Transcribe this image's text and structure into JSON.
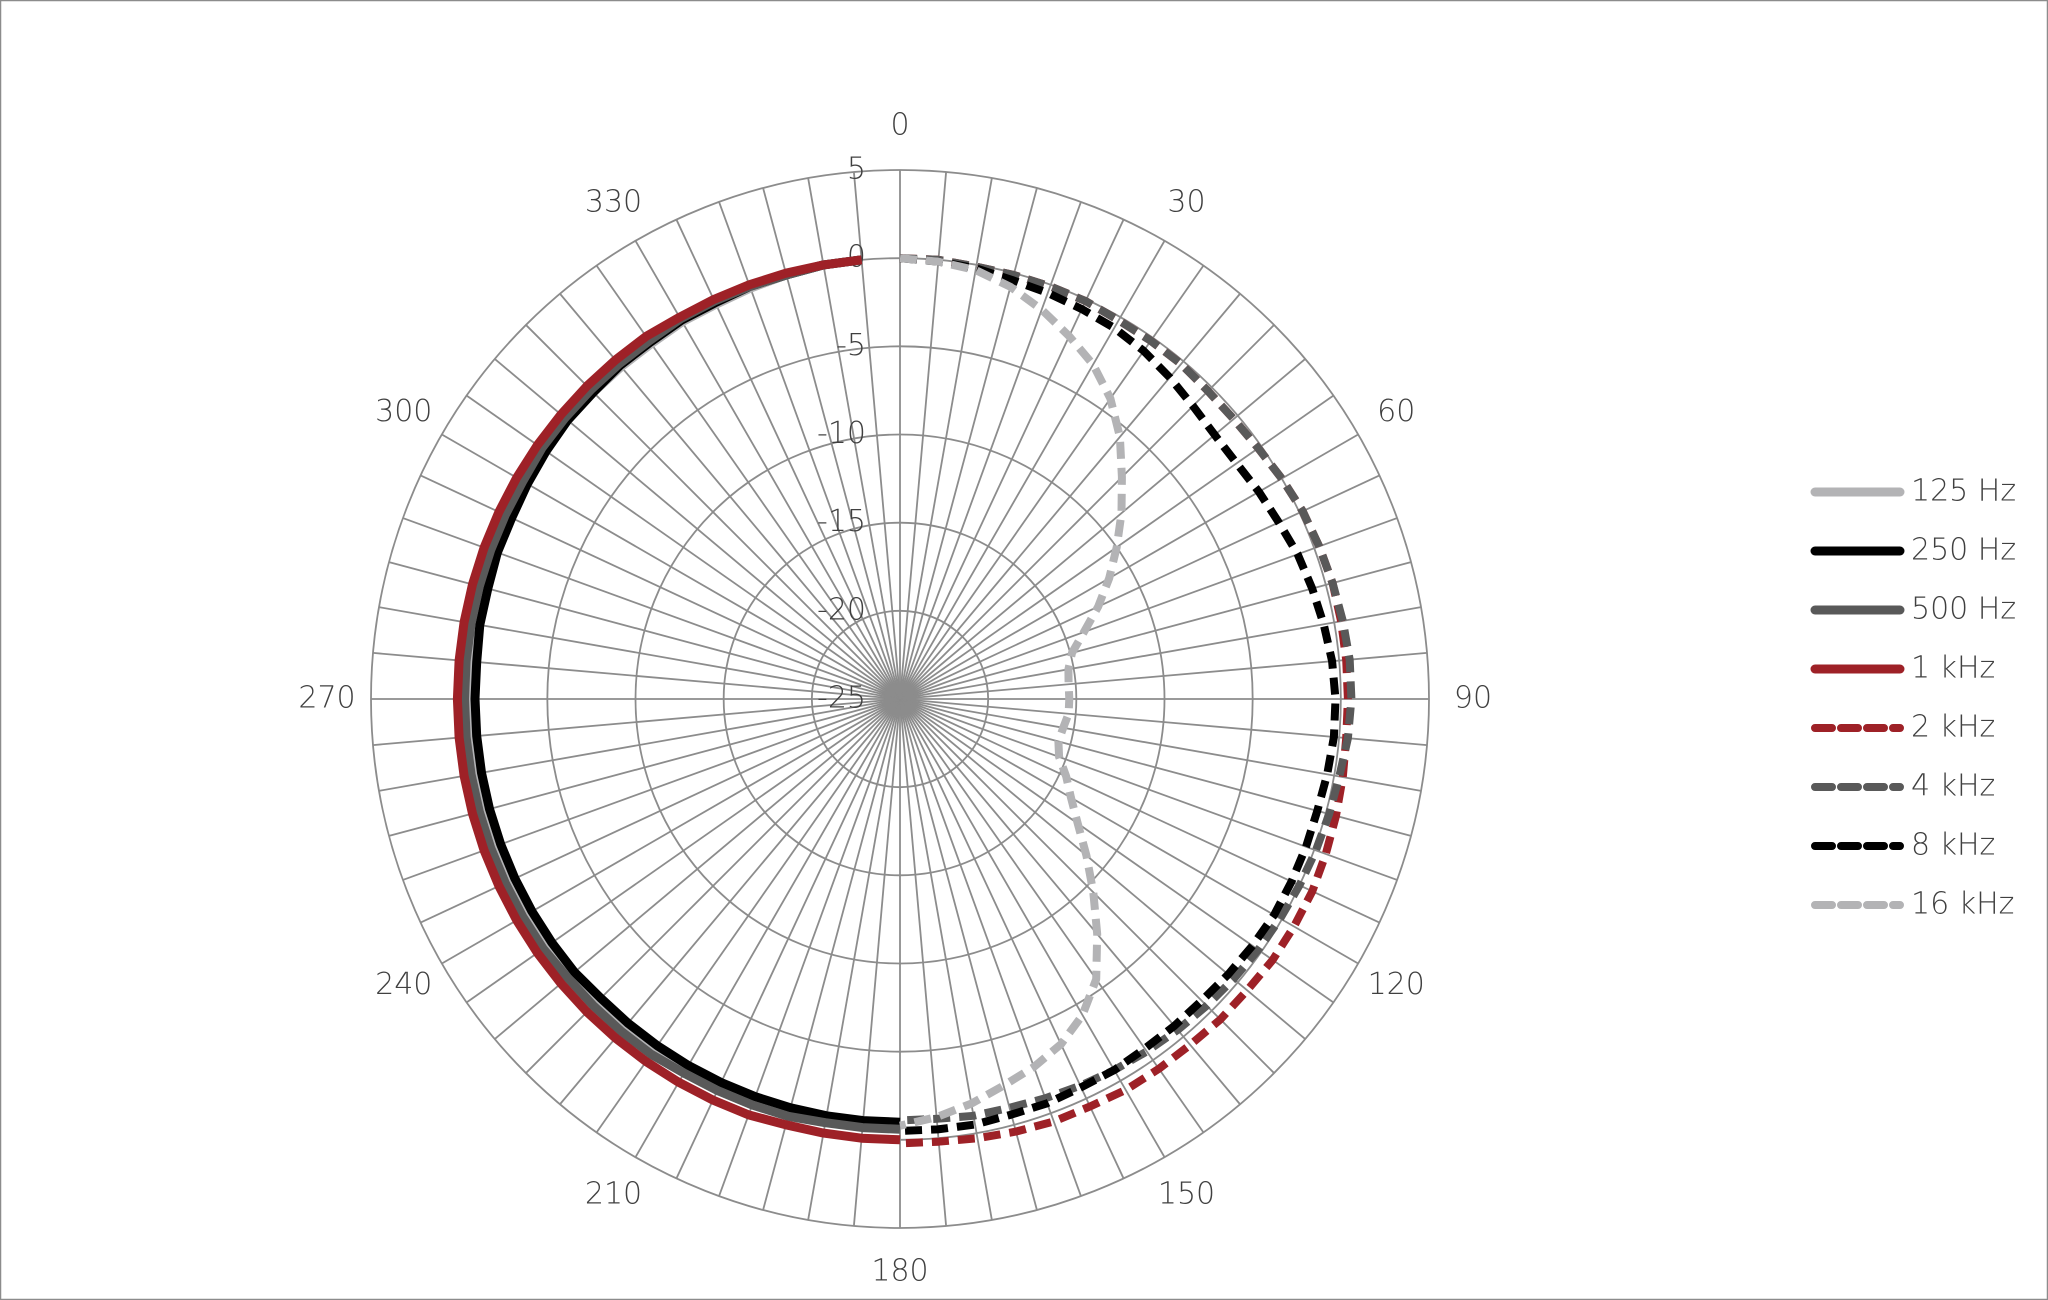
{
  "chart_data": {
    "type": "radar",
    "categories": [
      "0",
      null,
      null,
      null,
      null,
      null,
      "30",
      null,
      null,
      null,
      null,
      null,
      "60",
      null,
      null,
      null,
      null,
      null,
      "90",
      null,
      null,
      null,
      null,
      null,
      "120",
      null,
      null,
      null,
      null,
      null,
      "150",
      null,
      null,
      null,
      null,
      null,
      "180",
      null,
      null,
      null,
      null,
      null,
      "210",
      null,
      null,
      null,
      null,
      null,
      "240",
      null,
      null,
      null,
      null,
      null,
      "270",
      null,
      null,
      null,
      null,
      null,
      "300",
      null,
      null,
      null,
      null,
      null,
      "330",
      null,
      null,
      null,
      null,
      null
    ],
    "ylim": [
      -25,
      5
    ],
    "yticks": [
      -25,
      -20,
      -15,
      -10,
      -5,
      0,
      5
    ],
    "grid": true,
    "legend": "right",
    "series": [
      {
        "name": "125 Hz",
        "color": "#b3b3b5",
        "dash": false,
        "values": [
          null,
          null,
          null,
          null,
          null,
          null,
          null,
          null,
          null,
          null,
          null,
          null,
          null,
          null,
          null,
          null,
          null,
          null,
          null,
          null,
          null,
          null,
          null,
          null,
          null,
          null,
          null,
          null,
          null,
          null,
          null,
          null,
          null,
          null,
          null,
          null,
          -0.7,
          -0.7,
          -0.7,
          -0.7,
          -0.6,
          -0.6,
          -0.6,
          -0.6,
          -0.5,
          -0.5,
          -0.5,
          -0.5,
          -0.5,
          -0.5,
          -0.5,
          -0.5,
          -0.5,
          -0.5,
          -0.5,
          -0.5,
          -0.4,
          -0.4,
          -0.4,
          -0.4,
          -0.4,
          -0.4,
          -0.4,
          -0.4,
          -0.4,
          -0.4,
          -0.3,
          -0.3,
          -0.2,
          -0.1,
          0,
          0
        ]
      },
      {
        "name": "250 Hz",
        "color": "#000000",
        "dash": false,
        "values": [
          null,
          null,
          null,
          null,
          null,
          null,
          null,
          null,
          null,
          null,
          null,
          null,
          null,
          null,
          null,
          null,
          null,
          null,
          null,
          null,
          null,
          null,
          null,
          null,
          null,
          null,
          null,
          null,
          null,
          null,
          null,
          null,
          null,
          null,
          null,
          null,
          -1.0,
          -1.0,
          -1.0,
          -1.0,
          -1.0,
          -1.0,
          -1.0,
          -1.0,
          -1.0,
          -1.0,
          -0.9,
          -0.9,
          -0.9,
          -0.9,
          -0.9,
          -0.9,
          -0.9,
          -0.9,
          -0.9,
          -0.9,
          -0.8,
          -0.8,
          -0.7,
          -0.7,
          -0.6,
          -0.5,
          -0.4,
          -0.4,
          -0.3,
          -0.3,
          -0.2,
          -0.2,
          -0.1,
          -0.1,
          0,
          0
        ]
      },
      {
        "name": "500 Hz",
        "color": "#595959",
        "dash": false,
        "values": [
          null,
          null,
          null,
          null,
          null,
          null,
          null,
          null,
          null,
          null,
          null,
          null,
          null,
          null,
          null,
          null,
          null,
          null,
          null,
          null,
          null,
          null,
          null,
          null,
          null,
          null,
          null,
          null,
          null,
          null,
          null,
          null,
          null,
          null,
          null,
          null,
          -0.6,
          -0.6,
          -0.6,
          -0.5,
          -0.5,
          -0.5,
          -0.5,
          -0.4,
          -0.4,
          -0.4,
          -0.4,
          -0.3,
          -0.3,
          -0.3,
          -0.3,
          -0.3,
          -0.3,
          -0.3,
          -0.3,
          -0.3,
          -0.3,
          -0.3,
          -0.3,
          -0.3,
          -0.3,
          -0.2,
          -0.2,
          -0.2,
          -0.2,
          -0.2,
          -0.1,
          -0.1,
          -0.1,
          -0.1,
          0,
          0
        ]
      },
      {
        "name": "1 kHz",
        "color": "#9e2127",
        "dash": false,
        "values": [
          null,
          null,
          null,
          null,
          null,
          null,
          null,
          null,
          null,
          null,
          null,
          null,
          null,
          null,
          null,
          null,
          null,
          null,
          null,
          null,
          null,
          null,
          null,
          null,
          null,
          null,
          null,
          null,
          null,
          null,
          null,
          null,
          null,
          null,
          null,
          null,
          0,
          0,
          0,
          0,
          0.1,
          0.1,
          0.1,
          0.1,
          0.1,
          0.1,
          0.1,
          0.1,
          0.1,
          0.1,
          0.1,
          0.1,
          0.1,
          0.1,
          0.1,
          0.1,
          0.1,
          0.1,
          0.1,
          0.1,
          0.1,
          0.1,
          0.1,
          0.1,
          0.1,
          0.1,
          0,
          0,
          0,
          0,
          0,
          0
        ]
      },
      {
        "name": "2 kHz",
        "color": "#9e2127",
        "dash": true,
        "values": [
          0,
          0,
          -0.1,
          -0.1,
          -0.1,
          -0.1,
          -0.2,
          -0.2,
          -0.2,
          -0.3,
          -0.3,
          -0.2,
          0,
          0.2,
          0.3,
          0.4,
          0.4,
          0.4,
          0.4,
          0.4,
          0.5,
          0.6,
          0.7,
          0.8,
          0.8,
          0.8,
          0.7,
          0.7,
          0.6,
          0.6,
          0.6,
          0.5,
          0.5,
          0.4,
          0.3,
          0.2,
          0.2,
          null,
          null,
          null,
          null,
          null,
          null,
          null,
          null,
          null,
          null,
          null,
          null,
          null,
          null,
          null,
          null,
          null,
          null,
          null,
          null,
          null,
          null,
          null,
          null,
          null,
          null,
          null,
          null,
          null,
          null,
          null,
          null,
          null,
          null,
          null
        ]
      },
      {
        "name": "4 kHz",
        "color": "#595959",
        "dash": true,
        "values": [
          0,
          0,
          -0.1,
          -0.1,
          -0.1,
          -0.1,
          -0.2,
          -0.2,
          -0.2,
          -0.3,
          -0.3,
          -0.2,
          0,
          0.2,
          0.3,
          0.4,
          0.5,
          0.6,
          0.6,
          0.5,
          0.3,
          0.2,
          0.1,
          0,
          -0.1,
          -0.2,
          -0.3,
          -0.4,
          -0.5,
          -0.6,
          -0.7,
          -0.8,
          -0.9,
          -1.0,
          -1.0,
          -1.1,
          -1.1,
          null,
          null,
          null,
          null,
          null,
          null,
          null,
          null,
          null,
          null,
          null,
          null,
          null,
          null,
          null,
          null,
          null,
          null,
          null,
          null,
          null,
          null,
          null,
          null,
          null,
          null,
          null,
          null,
          null,
          null,
          null,
          null,
          null,
          null,
          null
        ]
      },
      {
        "name": "8 kHz",
        "color": "#000000",
        "dash": true,
        "values": [
          0,
          -0.1,
          -0.2,
          -0.4,
          -0.5,
          -0.6,
          -0.7,
          -0.9,
          -1.2,
          -1.5,
          -1.7,
          -1.7,
          -1.5,
          -1.3,
          -1.0,
          -0.8,
          -0.6,
          -0.4,
          -0.3,
          -0.3,
          -0.4,
          -0.5,
          -0.5,
          -0.5,
          -0.5,
          -0.6,
          -0.7,
          -0.8,
          -0.8,
          -0.8,
          -0.7,
          -0.7,
          -0.6,
          -0.6,
          -0.5,
          -0.5,
          -0.5,
          null,
          null,
          null,
          null,
          null,
          null,
          null,
          null,
          null,
          null,
          null,
          null,
          null,
          null,
          null,
          null,
          null,
          null,
          null,
          null,
          null,
          null,
          null,
          null,
          null,
          null,
          null,
          null,
          null,
          null,
          null,
          null,
          null,
          null,
          null
        ]
      },
      {
        "name": "16 kHz",
        "color": "#b3b3b5",
        "dash": true,
        "values": [
          0,
          -0.1,
          -0.3,
          -0.8,
          -1.5,
          -2.3,
          -3.1,
          -4.2,
          -5.6,
          -7.2,
          -8.6,
          -10,
          -11.3,
          -12.6,
          -13.9,
          -14.9,
          -15.3,
          -15.4,
          -15.4,
          -15.4,
          -15.6,
          -15.7,
          -15.4,
          -14.6,
          -13.8,
          -12.7,
          -11.2,
          -9.5,
          -7.6,
          -5.6,
          -4.3,
          -3.4,
          -2.8,
          -2.3,
          -1.7,
          -1.2,
          -0.8,
          null,
          null,
          null,
          null,
          null,
          null,
          null,
          null,
          null,
          null,
          null,
          null,
          null,
          null,
          null,
          null,
          null,
          null,
          null,
          null,
          null,
          null,
          null,
          null,
          null,
          null,
          null,
          null,
          null,
          null,
          null,
          null,
          null,
          null,
          null
        ]
      }
    ]
  }
}
